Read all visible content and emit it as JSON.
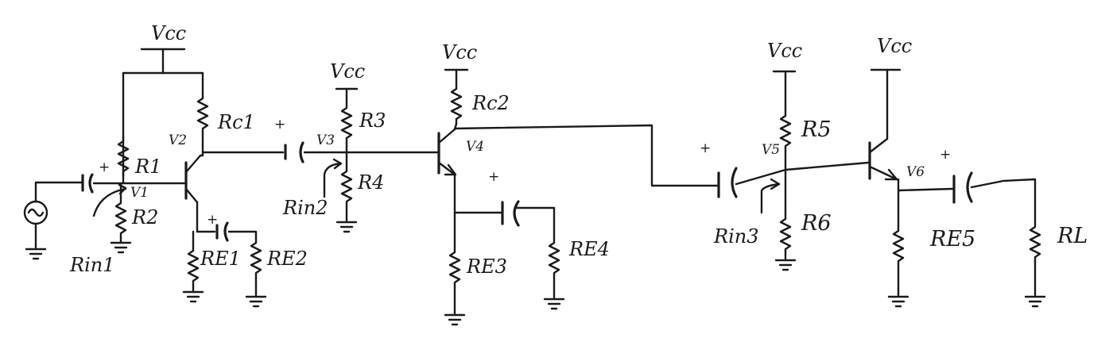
{
  "labels": {
    "vcc": "Vcc",
    "r1": "R1",
    "r2": "R2",
    "r3": "R3",
    "r4": "R4",
    "r5": "R5",
    "r6": "R6",
    "rc1": "Rc1",
    "rc2": "Rc2",
    "re1": "RE1",
    "re2": "RE2",
    "re3": "RE3",
    "re4": "RE4",
    "re5": "RE5",
    "rl": "RL",
    "v1": "V1",
    "v2": "V2",
    "v3": "V3",
    "v4": "V4",
    "v5": "V5",
    "v6": "V6",
    "rin1": "Rin1",
    "rin2": "Rin2",
    "rin3": "Rin3",
    "plus": "+"
  }
}
